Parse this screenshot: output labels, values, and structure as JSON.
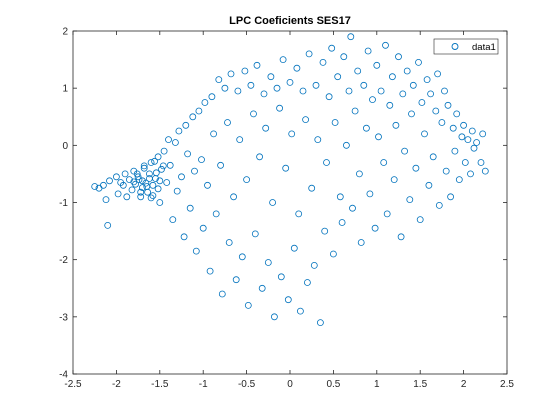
{
  "chart_data": {
    "type": "scatter",
    "title": "LPC Coeficients SES17",
    "xlabel": "",
    "ylabel": "",
    "xlim": [
      -2.5,
      2.5
    ],
    "ylim": [
      -4,
      2
    ],
    "grid": false,
    "legend_position": "top-right",
    "marker": "open-circle",
    "x_ticks": [
      -2.5,
      -2,
      -1.5,
      -1,
      -0.5,
      0,
      0.5,
      1,
      1.5,
      2,
      2.5
    ],
    "x_tick_labels": [
      "-2.5",
      "-2",
      "-1.5",
      "-1",
      "-0.5",
      "0",
      "0.5",
      "1",
      "1.5",
      "2",
      "2.5"
    ],
    "y_ticks": [
      -4,
      -3,
      -2,
      -1,
      0,
      1,
      2
    ],
    "y_tick_labels": [
      "-4",
      "-3",
      "-2",
      "-1",
      "0",
      "1",
      "2"
    ],
    "series": [
      {
        "name": "data1",
        "color": "#0072BD",
        "points": [
          [
            -2.25,
            -0.72
          ],
          [
            -2.2,
            -0.75
          ],
          [
            -2.15,
            -0.7
          ],
          [
            -2.12,
            -0.95
          ],
          [
            -2.08,
            -0.62
          ],
          [
            -2.1,
            -1.4
          ],
          [
            -2.0,
            -0.55
          ],
          [
            -1.98,
            -0.85
          ],
          [
            -1.95,
            -0.65
          ],
          [
            -1.92,
            -0.7
          ],
          [
            -1.9,
            -0.5
          ],
          [
            -1.88,
            -0.9
          ],
          [
            -1.85,
            -0.6
          ],
          [
            -1.82,
            -0.78
          ],
          [
            -1.8,
            -0.45
          ],
          [
            -1.78,
            -0.68
          ],
          [
            -1.75,
            -0.55
          ],
          [
            -1.72,
            -0.82
          ],
          [
            -1.7,
            -0.62
          ],
          [
            -1.68,
            -0.4
          ],
          [
            -1.65,
            -0.72
          ],
          [
            -1.62,
            -0.5
          ],
          [
            -1.6,
            -0.3
          ],
          [
            -1.58,
            -0.88
          ],
          [
            -1.55,
            -0.58
          ],
          [
            -1.52,
            -0.2
          ],
          [
            -1.5,
            -1.0
          ],
          [
            -1.48,
            -0.42
          ],
          [
            -1.45,
            -0.1
          ],
          [
            -1.42,
            -0.65
          ],
          [
            -1.4,
            0.1
          ],
          [
            -1.38,
            -0.35
          ],
          [
            -1.35,
            -1.3
          ],
          [
            -1.32,
            0.05
          ],
          [
            -1.3,
            -0.8
          ],
          [
            -1.28,
            0.25
          ],
          [
            -1.25,
            -0.55
          ],
          [
            -1.22,
            -1.6
          ],
          [
            -1.2,
            0.35
          ],
          [
            -1.18,
            -0.15
          ],
          [
            -1.15,
            -1.1
          ],
          [
            -1.12,
            0.5
          ],
          [
            -1.1,
            -0.45
          ],
          [
            -1.08,
            -1.85
          ],
          [
            -1.05,
            0.6
          ],
          [
            -1.02,
            -0.25
          ],
          [
            -1.0,
            -1.45
          ],
          [
            -0.98,
            0.75
          ],
          [
            -0.95,
            -0.7
          ],
          [
            -0.92,
            -2.2
          ],
          [
            -0.9,
            0.85
          ],
          [
            -0.88,
            0.2
          ],
          [
            -0.85,
            -1.2
          ],
          [
            -0.82,
            1.15
          ],
          [
            -0.8,
            -0.35
          ],
          [
            -0.78,
            -2.6
          ],
          [
            -0.75,
            1.0
          ],
          [
            -0.72,
            0.4
          ],
          [
            -0.7,
            -1.7
          ],
          [
            -0.68,
            1.25
          ],
          [
            -0.65,
            -0.9
          ],
          [
            -0.62,
            -2.35
          ],
          [
            -0.6,
            0.95
          ],
          [
            -0.58,
            0.1
          ],
          [
            -0.55,
            -1.95
          ],
          [
            -0.52,
            1.3
          ],
          [
            -0.5,
            -0.6
          ],
          [
            -0.48,
            -2.8
          ],
          [
            -0.45,
            1.05
          ],
          [
            -0.42,
            0.55
          ],
          [
            -0.4,
            -1.55
          ],
          [
            -0.38,
            1.4
          ],
          [
            -0.35,
            -0.2
          ],
          [
            -0.32,
            -2.5
          ],
          [
            -0.3,
            0.9
          ],
          [
            -0.28,
            0.3
          ],
          [
            -0.25,
            -2.05
          ],
          [
            -0.22,
            1.2
          ],
          [
            -0.2,
            -1.0
          ],
          [
            -0.18,
            -3.0
          ],
          [
            -0.15,
            1.0
          ],
          [
            -0.12,
            0.65
          ],
          [
            -0.1,
            -2.3
          ],
          [
            -0.08,
            1.5
          ],
          [
            -0.05,
            -0.4
          ],
          [
            -0.02,
            -2.7
          ],
          [
            0.0,
            1.1
          ],
          [
            0.02,
            0.2
          ],
          [
            0.05,
            -1.8
          ],
          [
            0.08,
            1.35
          ],
          [
            0.1,
            -1.2
          ],
          [
            0.12,
            -2.9
          ],
          [
            0.15,
            0.95
          ],
          [
            0.18,
            0.45
          ],
          [
            0.2,
            -2.4
          ],
          [
            0.22,
            1.6
          ],
          [
            0.25,
            -0.75
          ],
          [
            0.28,
            -2.1
          ],
          [
            0.3,
            1.05
          ],
          [
            0.32,
            0.1
          ],
          [
            0.35,
            -3.1
          ],
          [
            0.38,
            1.45
          ],
          [
            0.4,
            -1.5
          ],
          [
            0.42,
            -0.3
          ],
          [
            0.45,
            0.85
          ],
          [
            0.48,
            1.7
          ],
          [
            0.5,
            -1.9
          ],
          [
            0.52,
            0.4
          ],
          [
            0.55,
            1.2
          ],
          [
            0.58,
            -0.9
          ],
          [
            0.6,
            -1.35
          ],
          [
            0.62,
            1.55
          ],
          [
            0.65,
            0.0
          ],
          [
            0.68,
            0.95
          ],
          [
            0.7,
            1.9
          ],
          [
            0.72,
            -1.1
          ],
          [
            0.75,
            0.6
          ],
          [
            0.78,
            1.3
          ],
          [
            0.8,
            -0.5
          ],
          [
            0.82,
            -1.7
          ],
          [
            0.85,
            1.05
          ],
          [
            0.88,
            0.3
          ],
          [
            0.9,
            1.65
          ],
          [
            0.92,
            -0.85
          ],
          [
            0.95,
            0.8
          ],
          [
            0.98,
            -1.45
          ],
          [
            1.0,
            1.4
          ],
          [
            1.02,
            0.15
          ],
          [
            1.05,
            0.95
          ],
          [
            1.08,
            -0.3
          ],
          [
            1.1,
            1.75
          ],
          [
            1.12,
            -1.2
          ],
          [
            1.15,
            0.7
          ],
          [
            1.18,
            1.2
          ],
          [
            1.2,
            -0.6
          ],
          [
            1.22,
            0.35
          ],
          [
            1.25,
            1.55
          ],
          [
            1.28,
            -1.6
          ],
          [
            1.3,
            0.9
          ],
          [
            1.32,
            -0.1
          ],
          [
            1.35,
            1.3
          ],
          [
            1.38,
            -0.95
          ],
          [
            1.4,
            0.55
          ],
          [
            1.42,
            1.05
          ],
          [
            1.45,
            -0.4
          ],
          [
            1.48,
            1.45
          ],
          [
            1.5,
            -1.3
          ],
          [
            1.52,
            0.75
          ],
          [
            1.55,
            0.2
          ],
          [
            1.58,
            1.15
          ],
          [
            1.6,
            -0.7
          ],
          [
            1.62,
            0.9
          ],
          [
            1.65,
            -0.2
          ],
          [
            1.68,
            0.6
          ],
          [
            1.7,
            1.25
          ],
          [
            1.72,
            -1.05
          ],
          [
            1.75,
            0.4
          ],
          [
            1.78,
            0.95
          ],
          [
            1.8,
            -0.45
          ],
          [
            1.82,
            0.7
          ],
          [
            1.85,
            -0.9
          ],
          [
            1.88,
            0.3
          ],
          [
            1.9,
            -0.1
          ],
          [
            1.92,
            0.55
          ],
          [
            1.95,
            -0.6
          ],
          [
            1.98,
            0.15
          ],
          [
            2.0,
            0.35
          ],
          [
            2.02,
            -0.3
          ],
          [
            2.05,
            0.1
          ],
          [
            2.08,
            -0.5
          ],
          [
            2.1,
            0.25
          ],
          [
            2.12,
            -0.05
          ],
          [
            2.15,
            0.05
          ],
          [
            2.2,
            -0.3
          ],
          [
            2.22,
            0.2
          ],
          [
            2.25,
            -0.45
          ],
          [
            -1.62,
            -0.58
          ],
          [
            -1.66,
            -0.66
          ],
          [
            -1.7,
            -0.74
          ],
          [
            -1.74,
            -0.6
          ],
          [
            -1.58,
            -0.7
          ],
          [
            -1.54,
            -0.48
          ],
          [
            -1.64,
            -0.82
          ],
          [
            -1.76,
            -0.5
          ],
          [
            -1.5,
            -0.62
          ],
          [
            -1.46,
            -0.36
          ],
          [
            -1.8,
            -0.64
          ],
          [
            -1.6,
            -0.92
          ],
          [
            -1.68,
            -0.36
          ],
          [
            -1.52,
            -0.76
          ],
          [
            -1.72,
            -0.9
          ],
          [
            -1.56,
            -0.28
          ]
        ]
      }
    ]
  }
}
